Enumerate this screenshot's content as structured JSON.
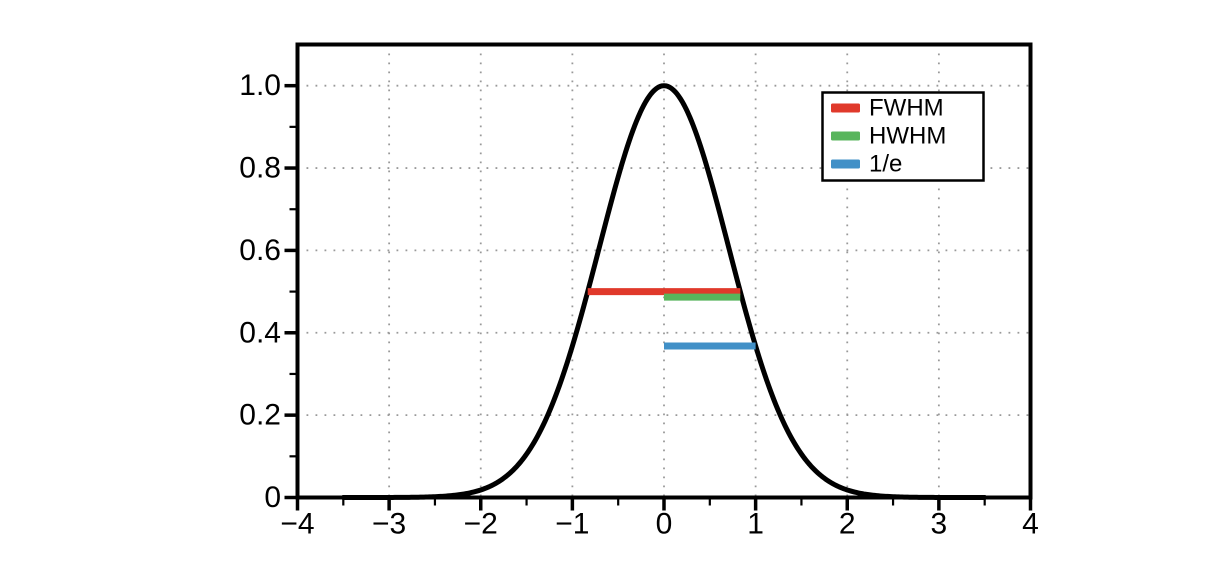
{
  "chart_data": {
    "type": "line",
    "title": "",
    "xlabel": "",
    "ylabel": "",
    "xlim": [
      -4,
      4
    ],
    "ylim": [
      0,
      1.1
    ],
    "x_major_ticks": [
      -4,
      -3,
      -2,
      -1,
      0,
      1,
      2,
      3,
      4
    ],
    "x_tick_labels": [
      "−4",
      "−3",
      "−2",
      "−1",
      "0",
      "1",
      "2",
      "3",
      "4"
    ],
    "x_minor_ticks": [
      -3.5,
      -2.5,
      -1.5,
      -0.5,
      0.5,
      1.5,
      2.5,
      3.5
    ],
    "y_major_ticks": [
      0,
      0.2,
      0.4,
      0.6,
      0.8,
      1.0
    ],
    "y_tick_labels": [
      "0",
      "0.2",
      "0.4",
      "0.6",
      "0.8",
      "1.0"
    ],
    "y_minor_ticks": [
      0.1,
      0.3,
      0.5,
      0.7,
      0.9
    ],
    "grid": {
      "style": "dotted",
      "color": "#999999",
      "x_lines": [
        -3,
        -2,
        -1,
        0,
        1,
        2,
        3
      ],
      "y_lines": [
        0.2,
        0.4,
        0.6,
        0.8,
        1.0
      ]
    },
    "curve": {
      "name": "gaussian",
      "formula": "y = exp(−x²)",
      "mu": 0,
      "denom": 1,
      "x_start": -3.5,
      "x_end": 3.5,
      "peak_x": 0,
      "peak_y": 1.0,
      "color": "#000000",
      "line_width": 5
    },
    "annotation_lines": [
      {
        "name": "FWHM",
        "color": "#e0392b",
        "y_value": 0.5,
        "y_drawn": 0.5,
        "x1": -0.8326,
        "x2": 0.8326
      },
      {
        "name": "HWHM",
        "color": "#58b55c",
        "y_value": 0.5,
        "y_drawn": 0.4865,
        "x1": 0,
        "x2": 0.8326
      },
      {
        "name": "1/e",
        "color": "#4190c7",
        "y_value": 0.3679,
        "y_drawn": 0.3679,
        "x1": 0,
        "x2": 1.0
      }
    ],
    "legend": {
      "position": "upper right",
      "border_color": "#000000",
      "background": "#ffffff",
      "entries": [
        {
          "label": "FWHM",
          "color": "#e0392b"
        },
        {
          "label": "HWHM",
          "color": "#58b55c"
        },
        {
          "label": "1/e",
          "color": "#4190c7"
        }
      ]
    }
  },
  "colors": {
    "background": "#ffffff",
    "frame": "#000000",
    "tick_label": "#000000"
  }
}
